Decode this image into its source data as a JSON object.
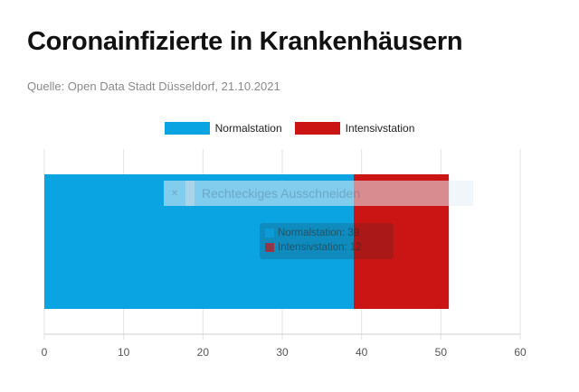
{
  "title": "Coronainfizierte in Krankenhäusern",
  "subtitle": "Quelle: Open Data Stadt Düsseldorf, 21.10.2021",
  "overlay": {
    "label": "Rechteckiges Ausschneiden",
    "icon": "scissors-icon"
  },
  "tooltip": {
    "rows": [
      "Normalstation: 39",
      "Intensivstation: 12"
    ]
  },
  "colors": {
    "normalstation": "#0aa4e3",
    "intensivstation": "#cb1414"
  },
  "chart_data": {
    "type": "bar",
    "orientation": "horizontal",
    "stacked": true,
    "categories": [
      ""
    ],
    "series": [
      {
        "name": "Normalstation",
        "values": [
          39
        ]
      },
      {
        "name": "Intensivstation",
        "values": [
          12
        ]
      }
    ],
    "xlim": [
      0,
      60
    ],
    "xticks": [
      "0",
      "10",
      "20",
      "30",
      "40",
      "50",
      "60"
    ],
    "grid": true,
    "legend": "top"
  }
}
